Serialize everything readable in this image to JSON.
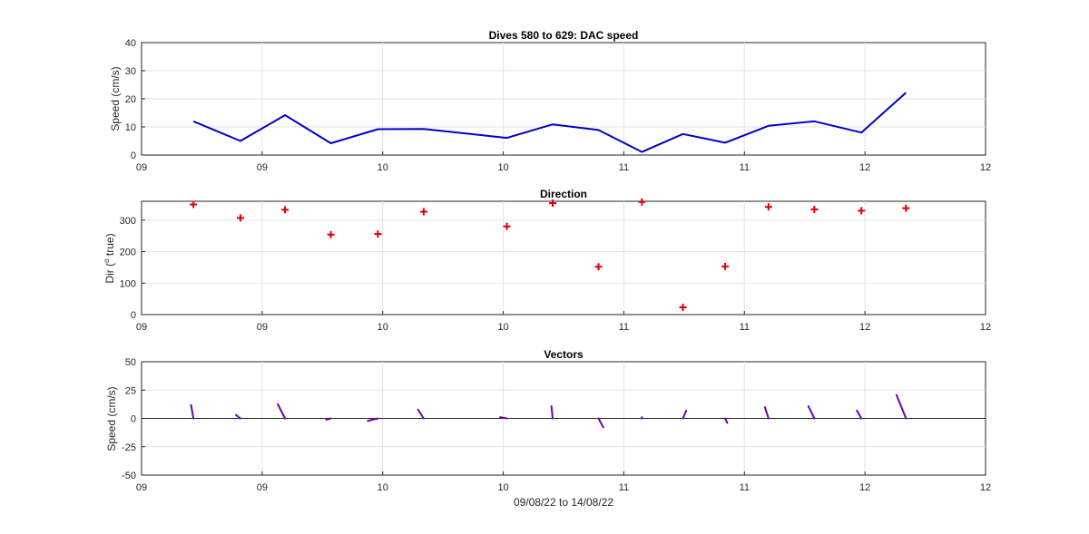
{
  "figure": {
    "xlabel": "09/08/22 to 14/08/22",
    "x_tick_labels": [
      "09",
      "09",
      "10",
      "10",
      "11",
      "11",
      "12",
      "12"
    ]
  },
  "chart_data": [
    {
      "type": "line",
      "title": "Dives 580 to 629: DAC speed",
      "ylabel": "Speed (cm/s)",
      "xlabel": "",
      "xlim": [
        0,
        7
      ],
      "ylim": [
        0,
        40
      ],
      "yticks": [
        0,
        10,
        20,
        30,
        40
      ],
      "grid": true,
      "color": "#0000c8",
      "series": [
        {
          "x": [
            0.43,
            0.82,
            1.19,
            1.57,
            1.96,
            2.34,
            3.03,
            3.41,
            3.79,
            4.15,
            4.49,
            4.84,
            5.2,
            5.58,
            5.97,
            6.34
          ],
          "values": [
            12,
            5,
            14.2,
            4.2,
            9.2,
            9.3,
            6.1,
            10.9,
            8.9,
            1.1,
            7.5,
            4.4,
            10.4,
            12,
            8,
            22.2
          ]
        }
      ]
    },
    {
      "type": "scatter",
      "title": "Direction",
      "ylabel_prefix": "Dir (",
      "ylabel_sup": "o",
      "ylabel_suffix": " true)",
      "xlabel": "",
      "xlim": [
        0,
        7
      ],
      "ylim": [
        0,
        360
      ],
      "yticks": [
        0,
        100,
        200,
        300
      ],
      "grid": true,
      "marker": "+",
      "color": "#e00000",
      "series": [
        {
          "x": [
            0.43,
            0.82,
            1.19,
            1.57,
            1.96,
            2.34,
            3.03,
            3.41,
            3.79,
            4.15,
            4.49,
            4.84,
            5.2,
            5.58,
            5.97,
            6.34
          ],
          "values": [
            350,
            307,
            333,
            254,
            256,
            327,
            280,
            354,
            152,
            358,
            23,
            153,
            342,
            334,
            330,
            338
          ]
        }
      ]
    },
    {
      "type": "vectors",
      "title": "Vectors",
      "ylabel": "Speed (cm/s)",
      "xlabel": "09/08/22 to 14/08/22",
      "xlim": [
        0,
        7
      ],
      "ylim": [
        -50,
        50
      ],
      "yticks": [
        -50,
        -25,
        0,
        25,
        50
      ],
      "grid": true,
      "zero_line": true,
      "color": "#7000b0",
      "series": [
        {
          "x": [
            0.43,
            0.82,
            1.19,
            1.57,
            1.96,
            2.34,
            3.03,
            3.41,
            3.79,
            4.15,
            4.49,
            4.84,
            5.2,
            5.58,
            5.97,
            6.34
          ],
          "speed": [
            12,
            5,
            14.2,
            4.2,
            9.2,
            9.3,
            6.1,
            10.9,
            8.9,
            1.1,
            7.5,
            4.4,
            10.4,
            12,
            8,
            22.2
          ],
          "direction": [
            350,
            307,
            333,
            254,
            256,
            327,
            280,
            354,
            152,
            358,
            23,
            153,
            342,
            334,
            330,
            338
          ]
        }
      ]
    }
  ]
}
